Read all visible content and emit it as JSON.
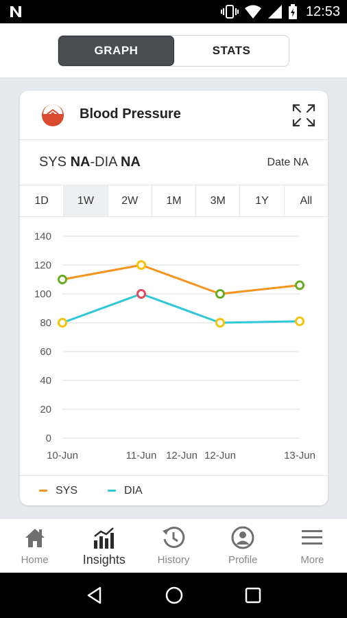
{
  "status_bar": {
    "time": "12:53"
  },
  "segments": [
    {
      "label": "GRAPH",
      "active": true
    },
    {
      "label": "STATS",
      "active": false
    }
  ],
  "card": {
    "title": "Blood Pressure",
    "reading": {
      "sys_label": "SYS",
      "sys_value": "NA",
      "separator": "-",
      "dia_label": "DIA",
      "dia_value": "NA"
    },
    "date": "Date NA",
    "ranges": [
      "1D",
      "1W",
      "2W",
      "1M",
      "3M",
      "1Y",
      "All"
    ],
    "active_range": "1W"
  },
  "chart_data": {
    "type": "line",
    "categories": [
      "10-Jun",
      "11-Jun",
      "12-Jun",
      "12-Jun",
      "13-Jun"
    ],
    "yticks": [
      0,
      20,
      40,
      60,
      80,
      100,
      120,
      140
    ],
    "ylim": [
      0,
      140
    ],
    "grid": true,
    "legend_position": "bottom-left",
    "series": [
      {
        "name": "SYS",
        "color": "#f7941d",
        "values": [
          110,
          120,
          null,
          100,
          106
        ],
        "marker_colors": [
          "#6aaa23",
          "#f2c40a",
          null,
          "#6aaa23",
          "#6aaa23"
        ]
      },
      {
        "name": "DIA",
        "color": "#2ec8d6",
        "values": [
          80,
          100,
          null,
          80,
          81
        ],
        "marker_colors": [
          "#f2c40a",
          "#e2475a",
          null,
          "#f2c40a",
          "#f2c40a"
        ]
      }
    ]
  },
  "bottom_nav": [
    {
      "label": "Home",
      "icon": "home-icon",
      "active": false
    },
    {
      "label": "Insights",
      "icon": "insights-icon",
      "active": true
    },
    {
      "label": "History",
      "icon": "history-icon",
      "active": false
    },
    {
      "label": "Profile",
      "icon": "profile-icon",
      "active": false
    },
    {
      "label": "More",
      "icon": "menu-icon",
      "active": false
    }
  ],
  "colors": {
    "active_segment": "#4a4d52",
    "card_bg": "#ffffff",
    "page_bg": "#e6e9ee"
  }
}
